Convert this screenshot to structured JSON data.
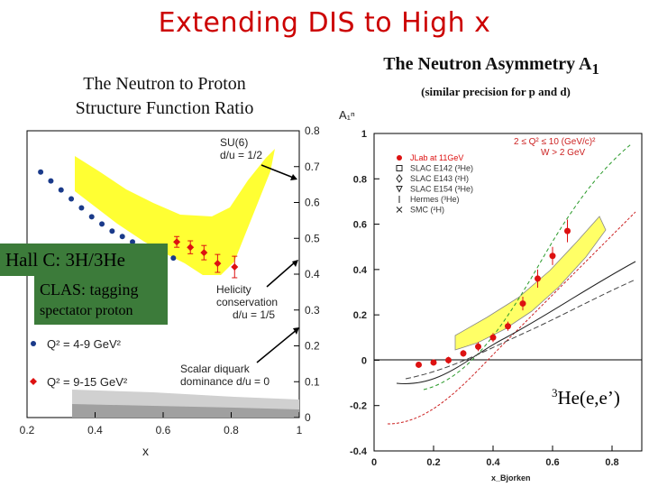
{
  "slide": {
    "title": "Extending DIS to High x",
    "left_heading_line1": "The Neutron to Proton",
    "left_heading_line2": "Structure Function Ratio",
    "right_heading": "The Neutron Asymmetry A",
    "right_heading_sub": "1",
    "right_subheading": "(similar precision for p and d)",
    "callout_hallc": "Hall C: 3H/3He",
    "callout_clas_line1": "CLAS: tagging",
    "callout_clas_line2": "spectator proton",
    "he3_label_sup": "3",
    "he3_label": "He(e,e’)"
  },
  "chart_data": [
    {
      "type": "scatter",
      "xlabel": "x",
      "xlim": [
        0.2,
        1.0
      ],
      "ylim": [
        0.0,
        0.8
      ],
      "x_ticks": [
        "0.2",
        "0.4",
        "0.6",
        "0.8",
        "1"
      ],
      "y_ticks": [
        "0",
        "0.1",
        "0.2",
        "0.3",
        "0.4",
        "0.5",
        "0.6",
        "0.7",
        "0.8"
      ],
      "annotations": {
        "su6_line1": "SU(6)",
        "su6_line2": "d/u = 1/2",
        "helicity_line1": "Helicity",
        "helicity_line2": "conservation",
        "helicity_line3": "d/u = 1/5",
        "diquark_line1": "Scalar diquark",
        "diquark_line2": "dominance  d/u = 0"
      },
      "legend_position": "bottom-left",
      "series": [
        {
          "name": "Q² = 4-9 GeV²",
          "color": "#1a3a8a",
          "marker": "circle",
          "x": [
            0.24,
            0.27,
            0.3,
            0.33,
            0.36,
            0.39,
            0.42,
            0.45,
            0.48,
            0.51,
            0.54,
            0.57,
            0.6,
            0.63
          ],
          "y": [
            0.685,
            0.66,
            0.635,
            0.61,
            0.585,
            0.56,
            0.54,
            0.52,
            0.505,
            0.49,
            0.475,
            0.46,
            0.45,
            0.445
          ]
        },
        {
          "name": "Q² = 9-15 GeV²",
          "color": "#dd1111",
          "marker": "diamond",
          "x": [
            0.64,
            0.68,
            0.72,
            0.76,
            0.81
          ],
          "y": [
            0.49,
            0.475,
            0.46,
            0.43,
            0.42
          ],
          "err": [
            0.015,
            0.018,
            0.02,
            0.025,
            0.03
          ]
        }
      ]
    },
    {
      "type": "scatter",
      "ylabel": "A₁ⁿ",
      "xlabel": "x_Bjorken",
      "xlim": [
        0.0,
        0.9
      ],
      "ylim": [
        -0.4,
        1.0
      ],
      "x_ticks": [
        "0",
        "0.2",
        "0.4",
        "0.6",
        "0.8"
      ],
      "y_ticks": [
        "-0.4",
        "-0.2",
        "0",
        "0.2",
        "0.4",
        "0.6",
        "0.8",
        "1"
      ],
      "annotations": {
        "range_line1": "2 ≤ Q² ≤ 10 (GeV/c)²",
        "range_line2": "W > 2 GeV"
      },
      "legend_position": "top-left",
      "legend": [
        "JLab at 11GeV",
        "SLAC E142 (³He)",
        "SLAC E143 (²H)",
        "SLAC E154 (³He)",
        "Hermes (³He)",
        "SMC (²H)"
      ],
      "series": [
        {
          "name": "JLab at 11GeV",
          "color": "#dd1111",
          "marker": "circle",
          "x": [
            0.15,
            0.2,
            0.25,
            0.3,
            0.35,
            0.4,
            0.45,
            0.5,
            0.55,
            0.6,
            0.65
          ],
          "y": [
            -0.02,
            -0.01,
            0.0,
            0.03,
            0.06,
            0.1,
            0.15,
            0.25,
            0.36,
            0.46,
            0.57
          ],
          "err": [
            0.01,
            0.01,
            0.015,
            0.015,
            0.02,
            0.02,
            0.02,
            0.03,
            0.04,
            0.04,
            0.05
          ]
        }
      ]
    }
  ]
}
